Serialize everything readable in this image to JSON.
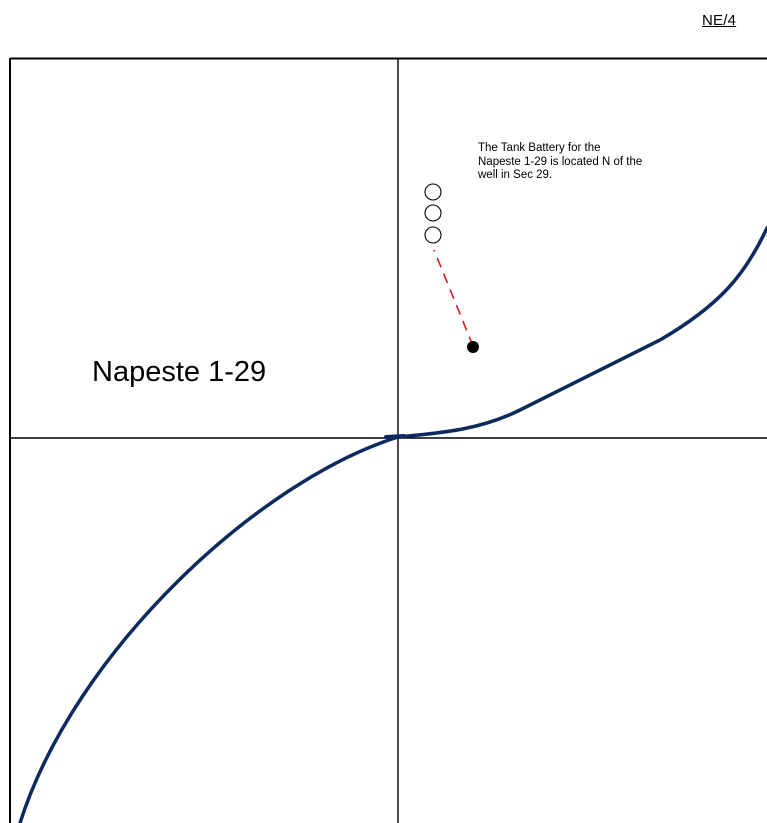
{
  "quarter_label": "NE/4",
  "well_name": "Napeste 1-29",
  "note_lines": [
    "The Tank Battery for the",
    "Napeste 1-29 is located N of the",
    "well in Sec 29."
  ],
  "colors": {
    "road": "#0d2a5e",
    "flowline": "#e0191f",
    "section_lines": "#000000",
    "well_marker": "#000000"
  },
  "icons": {
    "tank": "circle-outline",
    "well": "filled-circle"
  },
  "tank_count": 3
}
